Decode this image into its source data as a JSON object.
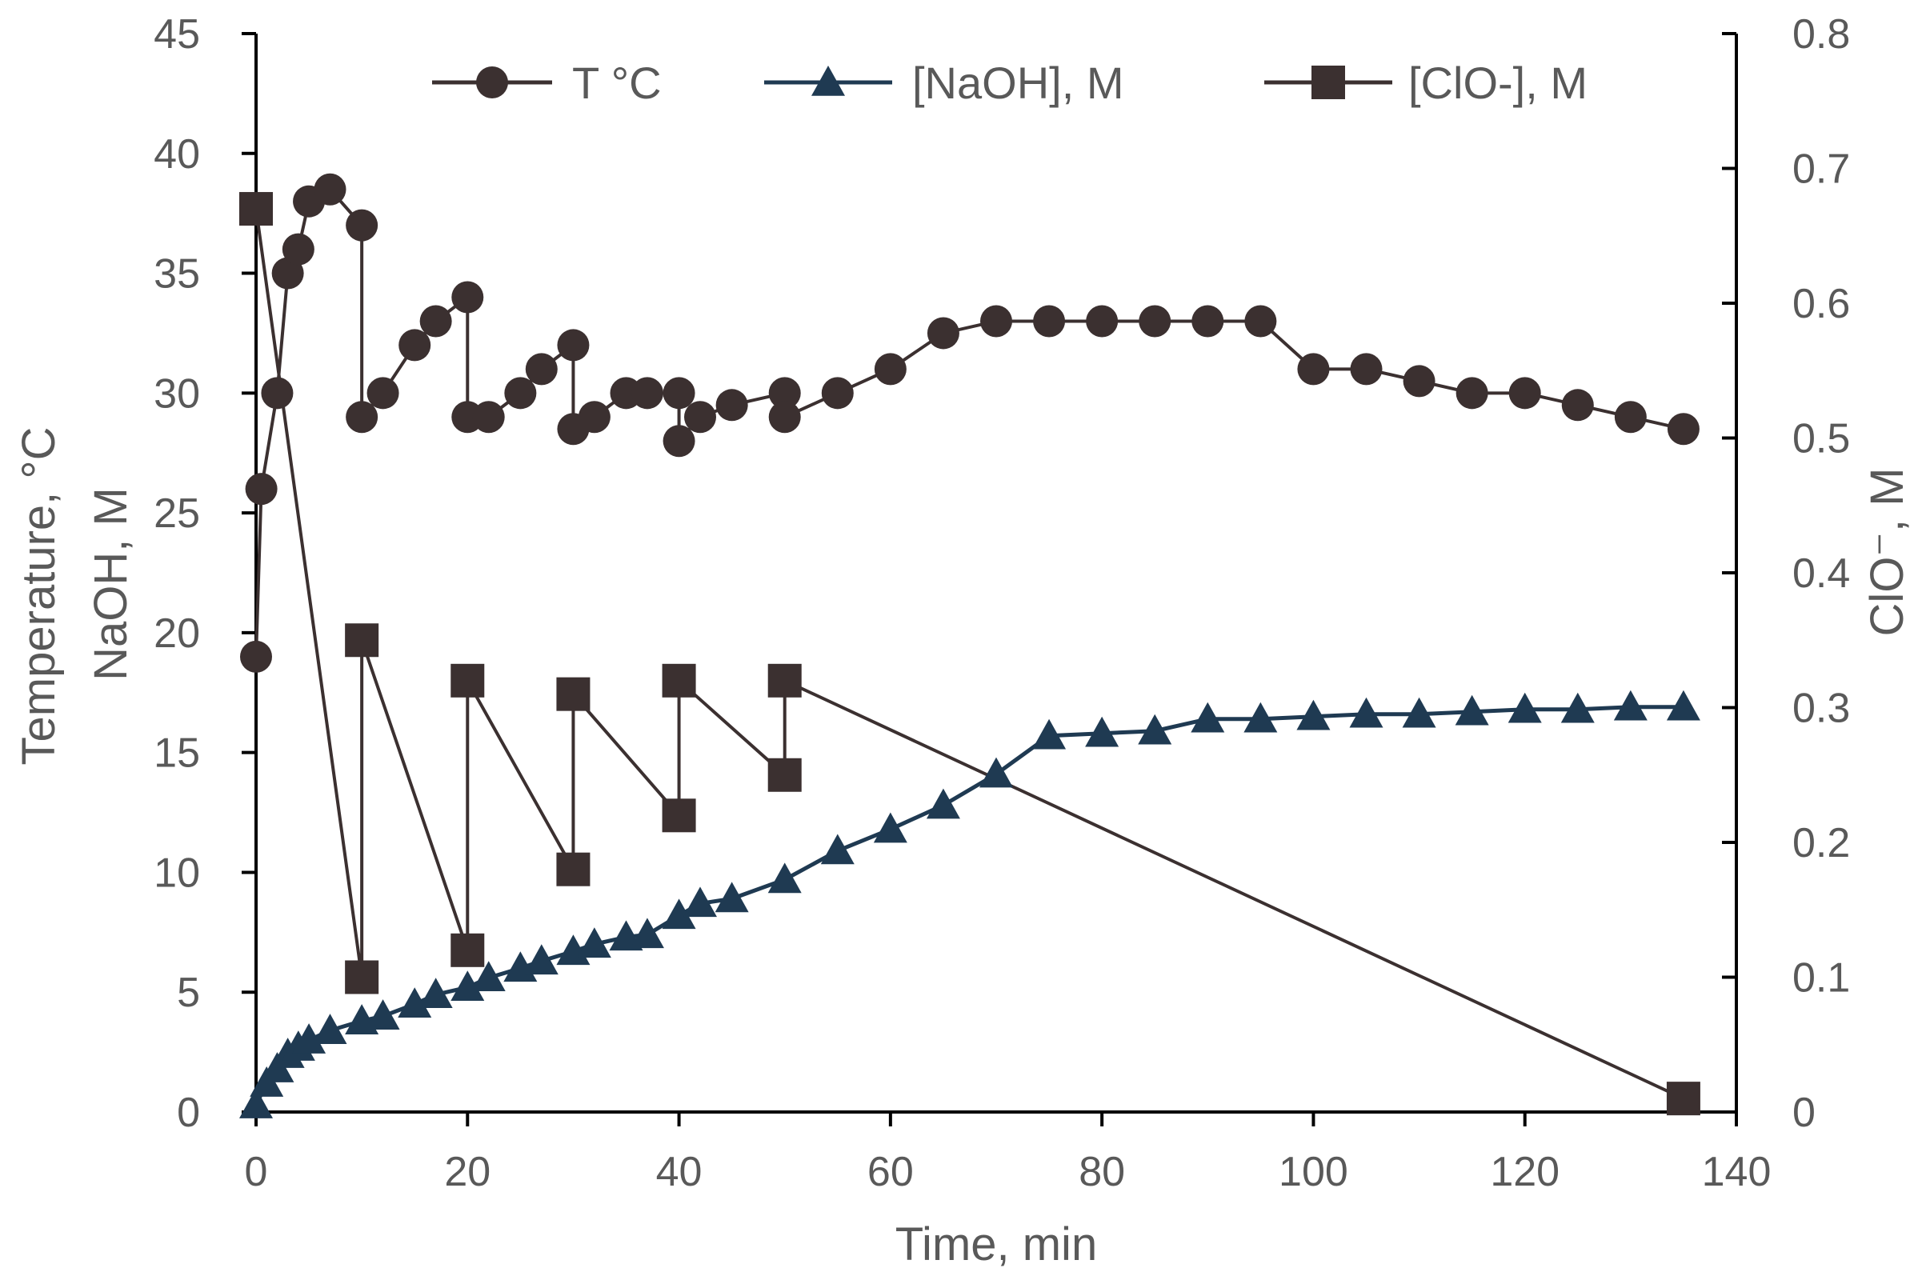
{
  "chart_data": {
    "type": "line",
    "title": "",
    "xlabel": "Time, min",
    "ylabel_left_line1": "Temperature, °C",
    "ylabel_left_line2": "NaOH, M",
    "ylabel_right": "ClO⁻, M",
    "xlim": [
      0,
      140
    ],
    "ylim_left": [
      0,
      45
    ],
    "ylim_right": [
      0,
      0.8
    ],
    "x_ticks": [
      0,
      20,
      40,
      60,
      80,
      100,
      120,
      140
    ],
    "y_left_ticks": [
      0,
      5,
      10,
      15,
      20,
      25,
      30,
      35,
      40,
      45
    ],
    "y_right_ticks": [
      "0",
      "0.1",
      "0.2",
      "0.3",
      "0.4",
      "0.5",
      "0.6",
      "0.7",
      "0.8"
    ],
    "grid": false,
    "legend_position": "top",
    "series": [
      {
        "name": "T °C",
        "axis": "left",
        "marker": "circle",
        "color": "#3b3030",
        "x": [
          0,
          0.5,
          2,
          3,
          4,
          5,
          7,
          10,
          10,
          12,
          15,
          17,
          20,
          20,
          22,
          25,
          27,
          30,
          30,
          32,
          35,
          37,
          40,
          40,
          42,
          45,
          50,
          50,
          55,
          60,
          65,
          70,
          75,
          80,
          85,
          90,
          95,
          100,
          105,
          110,
          115,
          120,
          125,
          130,
          135
        ],
        "y": [
          19,
          26,
          30,
          35,
          36,
          38,
          38.5,
          37,
          29,
          30,
          32,
          33,
          34,
          29,
          29,
          30,
          31,
          32,
          28.5,
          29,
          30,
          30,
          30,
          28,
          29,
          29.5,
          30,
          29,
          30,
          31,
          32.5,
          33,
          33,
          33,
          33,
          33,
          33,
          31,
          31,
          30.5,
          30,
          30,
          29.5,
          29,
          28.5
        ]
      },
      {
        "name": "[NaOH], M",
        "axis": "left",
        "marker": "triangle",
        "color": "#1f3a52",
        "x": [
          0,
          1,
          2,
          3,
          4,
          5,
          7,
          10,
          12,
          15,
          17,
          20,
          22,
          25,
          27,
          30,
          32,
          35,
          37,
          40,
          42,
          45,
          50,
          55,
          60,
          65,
          70,
          75,
          80,
          85,
          90,
          95,
          100,
          105,
          110,
          115,
          120,
          125,
          130,
          135
        ],
        "y": [
          0.3,
          1.2,
          1.8,
          2.4,
          2.7,
          3.0,
          3.4,
          3.8,
          4.0,
          4.5,
          4.9,
          5.2,
          5.6,
          6.0,
          6.3,
          6.7,
          7.0,
          7.3,
          7.4,
          8.2,
          8.7,
          8.9,
          9.7,
          10.9,
          11.8,
          12.8,
          14.1,
          15.7,
          15.8,
          15.9,
          16.4,
          16.4,
          16.5,
          16.6,
          16.6,
          16.7,
          16.8,
          16.8,
          16.9,
          16.9
        ]
      },
      {
        "name": "[ClO-], M",
        "axis": "right",
        "marker": "square",
        "color": "#3b3030",
        "x": [
          0,
          10,
          10,
          20,
          20,
          30,
          30,
          40,
          40,
          50,
          50,
          135
        ],
        "y": [
          0.67,
          0.1,
          0.35,
          0.12,
          0.32,
          0.18,
          0.31,
          0.22,
          0.32,
          0.25,
          0.32,
          0.01
        ]
      }
    ]
  }
}
